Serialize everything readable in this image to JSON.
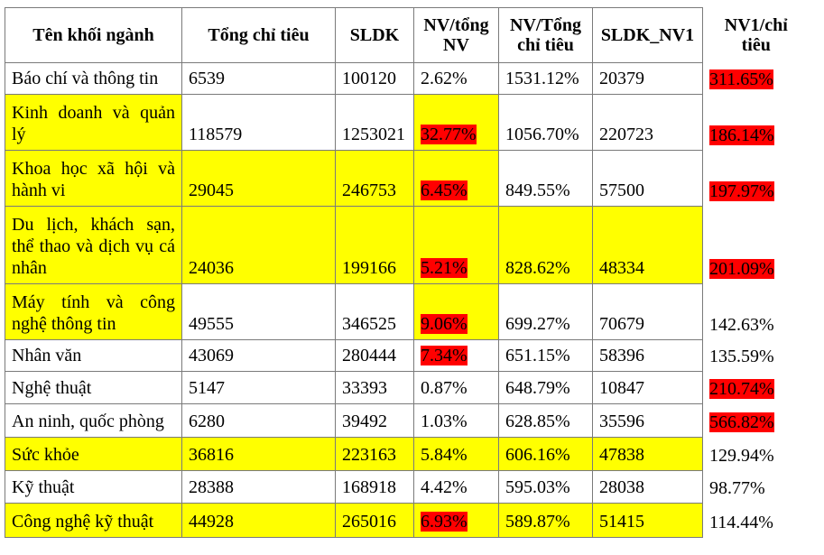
{
  "headers": [
    "Tên khối ngành",
    "Tổng chỉ tiêu",
    "SLDK",
    "NV/tổng NV",
    "NV/Tổng chỉ tiêu",
    "SLDK_NV1",
    "NV1/chỉ tiêu"
  ],
  "colors": {
    "highlight_yellow": "#ffff00",
    "highlight_red": "#ff0000",
    "border": "#7a7a7a"
  },
  "rows": [
    {
      "name": "Báo chí và thông tin",
      "values": [
        "6539",
        "100120",
        "2.62%",
        "1531.12%",
        "20379",
        "311.65%"
      ],
      "yellow": [
        false,
        false,
        false,
        false,
        false,
        false,
        false
      ],
      "red": [
        false,
        false,
        false,
        false,
        false,
        true
      ]
    },
    {
      "name": "Kinh doanh và quản lý",
      "values": [
        "118579",
        "1253021",
        "32.77%",
        "1056.70%",
        "220723",
        "186.14%"
      ],
      "yellow": [
        true,
        false,
        false,
        true,
        false,
        false,
        false
      ],
      "red": [
        false,
        false,
        true,
        false,
        false,
        true
      ]
    },
    {
      "name": "Khoa học xã hội và hành vi",
      "values": [
        "29045",
        "246753",
        "6.45%",
        "849.55%",
        "57500",
        "197.97%"
      ],
      "yellow": [
        true,
        true,
        true,
        true,
        false,
        false,
        false
      ],
      "red": [
        false,
        false,
        true,
        false,
        false,
        true
      ]
    },
    {
      "name": "Du lịch, khách sạn, thể thao và dịch vụ cá nhân",
      "values": [
        "24036",
        "199166",
        "5.21%",
        "828.62%",
        "48334",
        "201.09%"
      ],
      "yellow": [
        true,
        true,
        true,
        true,
        true,
        true,
        false
      ],
      "red": [
        false,
        false,
        true,
        false,
        false,
        true
      ]
    },
    {
      "name": "Máy tính và công nghệ thông tin",
      "values": [
        "49555",
        "346525",
        "9.06%",
        "699.27%",
        "70679",
        "142.63%"
      ],
      "yellow": [
        true,
        false,
        false,
        true,
        false,
        false,
        false
      ],
      "red": [
        false,
        false,
        true,
        false,
        false,
        false
      ]
    },
    {
      "name": "Nhân văn",
      "values": [
        "43069",
        "280444",
        "7.34%",
        "651.15%",
        "58396",
        "135.59%"
      ],
      "yellow": [
        false,
        false,
        false,
        false,
        false,
        false,
        false
      ],
      "red": [
        false,
        false,
        true,
        false,
        false,
        false
      ]
    },
    {
      "name": "Nghệ thuật",
      "values": [
        "5147",
        "33393",
        "0.87%",
        "648.79%",
        "10847",
        "210.74%"
      ],
      "yellow": [
        false,
        false,
        false,
        false,
        false,
        false,
        false
      ],
      "red": [
        false,
        false,
        false,
        false,
        false,
        true
      ]
    },
    {
      "name": "An ninh, quốc phòng",
      "values": [
        "6280",
        "39492",
        "1.03%",
        "628.85%",
        "35596",
        "566.82%"
      ],
      "yellow": [
        false,
        false,
        false,
        false,
        false,
        false,
        false
      ],
      "red": [
        false,
        false,
        false,
        false,
        false,
        true
      ]
    },
    {
      "name": "Sức khỏe",
      "values": [
        "36816",
        "223163",
        "5.84%",
        "606.16%",
        "47838",
        "129.94%"
      ],
      "yellow": [
        true,
        true,
        true,
        true,
        true,
        true,
        false
      ],
      "red": [
        false,
        false,
        false,
        false,
        false,
        false
      ]
    },
    {
      "name": "Kỹ thuật",
      "values": [
        "28388",
        "168918",
        "4.42%",
        "595.03%",
        "28038",
        "98.77%"
      ],
      "yellow": [
        false,
        false,
        false,
        false,
        false,
        false,
        false
      ],
      "red": [
        false,
        false,
        false,
        false,
        false,
        false
      ]
    },
    {
      "name": "Công nghệ kỹ thuật",
      "values": [
        "44928",
        "265016",
        "6.93%",
        "589.87%",
        "51415",
        "114.44%"
      ],
      "yellow": [
        true,
        true,
        true,
        true,
        true,
        true,
        false
      ],
      "red": [
        false,
        false,
        true,
        false,
        false,
        false
      ]
    }
  ]
}
